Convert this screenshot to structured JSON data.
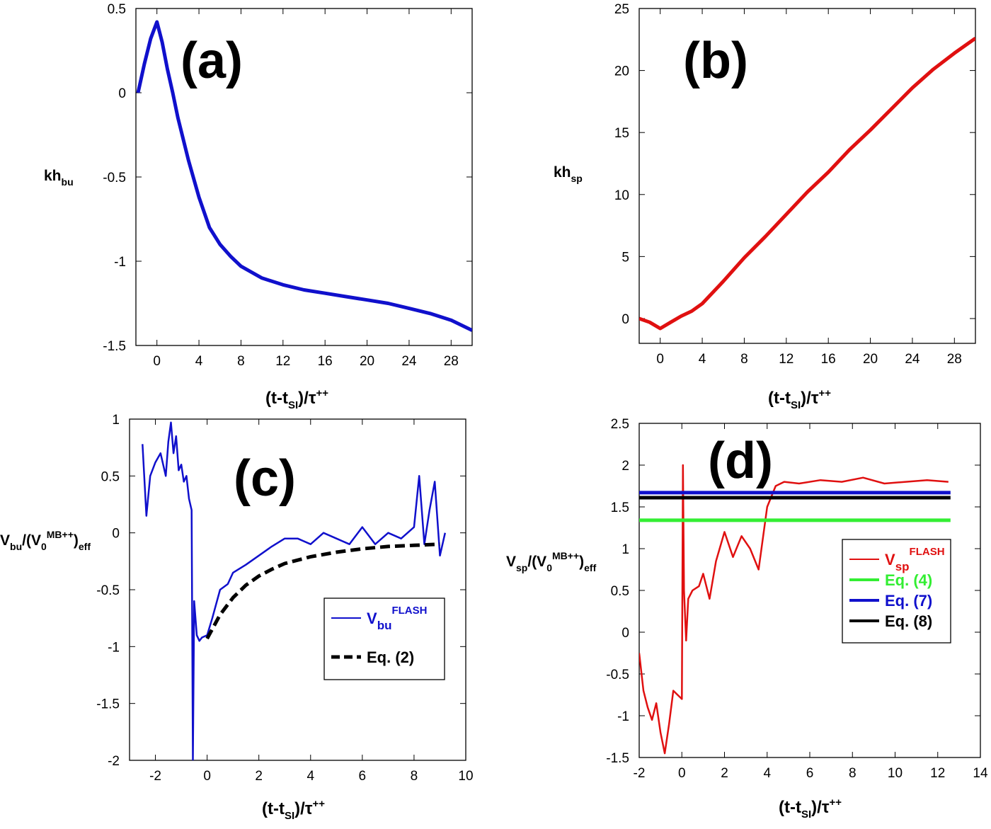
{
  "chart_data": [
    {
      "id": "a",
      "type": "line",
      "panel_label": "(a)",
      "xlabel": {
        "main": "(t-t",
        "sub": "SI",
        "mid": ")/τ",
        "sup": "++"
      },
      "ylabel": {
        "main": "kh",
        "sub": "bu"
      },
      "xlim": [
        -2,
        30
      ],
      "ylim": [
        -1.5,
        0.5
      ],
      "xticks": [
        0,
        4,
        8,
        12,
        16,
        20,
        24,
        28
      ],
      "yticks": [
        0.5,
        0,
        -0.5,
        -1,
        -1.5
      ],
      "ytick_labels": [
        "0.5",
        "0",
        "-0.5",
        "-1",
        "-1.5"
      ],
      "series": [
        {
          "color": "#1010cc",
          "x": [
            -1.8,
            -1.2,
            -0.6,
            0,
            0.5,
            1,
            1.5,
            2,
            3,
            4,
            5,
            6,
            7,
            8,
            10,
            12,
            14,
            16,
            18,
            20,
            22,
            24,
            26,
            28,
            30
          ],
          "y": [
            0.0,
            0.17,
            0.32,
            0.42,
            0.3,
            0.14,
            0.0,
            -0.15,
            -0.4,
            -0.62,
            -0.8,
            -0.9,
            -0.97,
            -1.03,
            -1.1,
            -1.14,
            -1.17,
            -1.19,
            -1.21,
            -1.23,
            -1.25,
            -1.28,
            -1.31,
            -1.35,
            -1.41
          ]
        }
      ]
    },
    {
      "id": "b",
      "type": "line",
      "panel_label": "(b)",
      "xlabel": {
        "main": "(t-t",
        "sub": "SI",
        "mid": ")/τ",
        "sup": "++"
      },
      "ylabel": {
        "main": "kh",
        "sub": "sp"
      },
      "xlim": [
        -2,
        30
      ],
      "ylim": [
        -2,
        25
      ],
      "xticks": [
        0,
        4,
        8,
        12,
        16,
        20,
        24,
        28
      ],
      "yticks": [
        0,
        5,
        10,
        15,
        20,
        25
      ],
      "ytick_labels": [
        "0",
        "5",
        "10",
        "15",
        "20",
        "25"
      ],
      "series": [
        {
          "color": "#e01010",
          "x": [
            -2,
            -1,
            0,
            1,
            2,
            3,
            4,
            6,
            8,
            10,
            12,
            14,
            16,
            18,
            20,
            22,
            24,
            26,
            28,
            30
          ],
          "y": [
            0.0,
            -0.3,
            -0.8,
            -0.3,
            0.2,
            0.6,
            1.2,
            3.0,
            4.9,
            6.6,
            8.4,
            10.2,
            11.8,
            13.6,
            15.2,
            16.9,
            18.6,
            20.1,
            21.4,
            22.6
          ]
        }
      ]
    },
    {
      "id": "c",
      "type": "line",
      "panel_label": "(c)",
      "xlabel": {
        "main": "(t-t",
        "sub": "SI",
        "mid": ")/τ",
        "sup": "++"
      },
      "ylabel": {
        "parts": [
          "V",
          "bu",
          "/(V",
          "0",
          "MB++",
          ")",
          "eff"
        ]
      },
      "xlim": [
        -3,
        10
      ],
      "ylim": [
        -2,
        1
      ],
      "xticks": [
        -2,
        0,
        2,
        4,
        6,
        8,
        10
      ],
      "yticks": [
        1,
        0.5,
        0,
        -0.5,
        -1,
        -1.5,
        -2
      ],
      "ytick_labels": [
        "1",
        "0.5",
        "0",
        "-0.5",
        "-1",
        "-1.5",
        "-2"
      ],
      "series": [
        {
          "name_main": "V",
          "name_sub": "bu",
          "name_sup": "FLASH",
          "color": "#1010cc",
          "style": "solid",
          "x": [
            -2.5,
            -2.35,
            -2.2,
            -2.0,
            -1.8,
            -1.6,
            -1.5,
            -1.4,
            -1.3,
            -1.2,
            -1.1,
            -1.0,
            -0.9,
            -0.8,
            -0.7,
            -0.6,
            -0.55,
            -0.5,
            -0.4,
            -0.3,
            -0.2,
            0.0,
            0.2,
            0.5,
            0.8,
            1.0,
            1.5,
            2.0,
            2.5,
            3.0,
            3.5,
            4.0,
            4.5,
            5.0,
            5.5,
            6.0,
            6.5,
            7.0,
            7.5,
            8.0,
            8.2,
            8.4,
            8.6,
            8.8,
            9.0,
            9.2
          ],
          "y": [
            0.78,
            0.15,
            0.5,
            0.62,
            0.7,
            0.5,
            0.8,
            0.97,
            0.7,
            0.85,
            0.55,
            0.6,
            0.45,
            0.5,
            0.3,
            0.2,
            -2.0,
            -0.6,
            -0.9,
            -0.95,
            -0.92,
            -0.9,
            -0.75,
            -0.5,
            -0.45,
            -0.35,
            -0.28,
            -0.2,
            -0.12,
            -0.05,
            -0.05,
            -0.1,
            0.0,
            -0.05,
            -0.1,
            0.05,
            -0.1,
            0.0,
            -0.05,
            0.05,
            0.5,
            -0.1,
            0.2,
            0.45,
            -0.2,
            0.0
          ]
        },
        {
          "name": "Eq. (2)",
          "color": "#000000",
          "style": "dashed",
          "x": [
            0,
            0.5,
            1,
            1.5,
            2,
            2.5,
            3,
            4,
            5,
            6,
            7,
            8,
            9
          ],
          "y": [
            -0.93,
            -0.72,
            -0.57,
            -0.46,
            -0.38,
            -0.32,
            -0.27,
            -0.21,
            -0.17,
            -0.14,
            -0.12,
            -0.11,
            -0.1
          ]
        }
      ]
    },
    {
      "id": "d",
      "type": "line",
      "panel_label": "(d)",
      "xlabel": {
        "main": "(t-t",
        "sub": "SI",
        "mid": ")/τ",
        "sup": "++"
      },
      "ylabel": {
        "parts": [
          "V",
          "sp",
          "/(V",
          "0",
          "MB++",
          ")",
          "eff"
        ]
      },
      "xlim": [
        -2,
        14
      ],
      "ylim": [
        -1.5,
        2.5
      ],
      "xticks": [
        -2,
        0,
        2,
        4,
        6,
        8,
        10,
        12,
        14
      ],
      "yticks": [
        2.5,
        2,
        1.5,
        1,
        0.5,
        0,
        -0.5,
        -1,
        -1.5
      ],
      "ytick_labels": [
        "2.5",
        "2",
        "1.5",
        "1",
        "0.5",
        "0",
        "-0.5",
        "-1",
        "-1.5"
      ],
      "series": [
        {
          "name_main": "V",
          "name_sub": "sp",
          "name_sup": "FLASH",
          "color": "#e01010",
          "style": "solid",
          "x": [
            -2.0,
            -1.8,
            -1.6,
            -1.4,
            -1.2,
            -1.0,
            -0.8,
            -0.6,
            -0.4,
            -0.2,
            0.0,
            0.05,
            0.1,
            0.2,
            0.3,
            0.5,
            0.8,
            1.0,
            1.3,
            1.6,
            2.0,
            2.4,
            2.8,
            3.2,
            3.6,
            4.0,
            4.4,
            4.8,
            5.5,
            6.5,
            7.5,
            8.5,
            9.5,
            10.5,
            11.5,
            12.5
          ],
          "y": [
            -0.25,
            -0.7,
            -0.9,
            -1.05,
            -0.85,
            -1.2,
            -1.45,
            -1.1,
            -0.7,
            -0.75,
            -0.8,
            2.0,
            0.5,
            -0.1,
            0.4,
            0.5,
            0.55,
            0.7,
            0.4,
            0.85,
            1.2,
            0.9,
            1.15,
            1.0,
            0.75,
            1.5,
            1.75,
            1.8,
            1.78,
            1.82,
            1.8,
            1.85,
            1.78,
            1.8,
            1.82,
            1.8
          ]
        },
        {
          "name": "Eq. (4)",
          "color": "#33ee33",
          "style": "solid",
          "x": [
            -2,
            12.6
          ],
          "y": [
            1.34,
            1.34
          ]
        },
        {
          "name": "Eq. (7)",
          "color": "#1010cc",
          "style": "solid",
          "x": [
            -2,
            12.6
          ],
          "y": [
            1.67,
            1.67
          ]
        },
        {
          "name": "Eq. (8)",
          "color": "#000000",
          "style": "solid",
          "x": [
            -2,
            12.6
          ],
          "y": [
            1.61,
            1.61
          ]
        }
      ]
    }
  ]
}
